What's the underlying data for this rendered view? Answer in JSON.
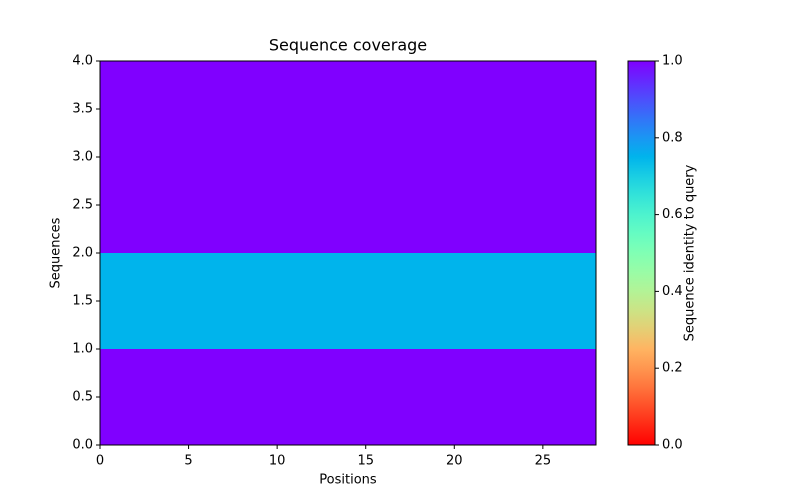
{
  "chart_data": {
    "type": "heatmap",
    "title": "Sequence coverage",
    "x_label": "Positions",
    "y_label": "Sequences",
    "values": [
      1.0,
      0.75,
      1.0,
      1.0
    ],
    "colormap": "rainbow_r",
    "xlim": [
      0,
      28
    ],
    "xticks": [
      0,
      5,
      10,
      15,
      20,
      25
    ],
    "ylim": [
      0,
      4
    ],
    "yticks": [
      {
        "value": 0,
        "label": "0.0"
      },
      {
        "value": 0.5,
        "label": "0.5"
      },
      {
        "value": 1,
        "label": "1.0"
      },
      {
        "value": 1.5,
        "label": "1.5"
      },
      {
        "value": 2,
        "label": "2.0"
      },
      {
        "value": 2.5,
        "label": "2.5"
      },
      {
        "value": 3,
        "label": "3.0"
      },
      {
        "value": 3.5,
        "label": "3.5"
      },
      {
        "value": 4,
        "label": "4.0"
      }
    ],
    "colorbar": {
      "label": "Sequence identity to query",
      "lim": [
        0,
        1
      ],
      "ticks": [
        {
          "value": 0,
          "label": "0.0"
        },
        {
          "value": 0.2,
          "label": "0.2"
        },
        {
          "value": 0.4,
          "label": "0.4"
        },
        {
          "value": 0.6,
          "label": "0.6"
        },
        {
          "value": 0.8,
          "label": "0.8"
        },
        {
          "value": 1,
          "label": "1.0"
        }
      ]
    }
  }
}
